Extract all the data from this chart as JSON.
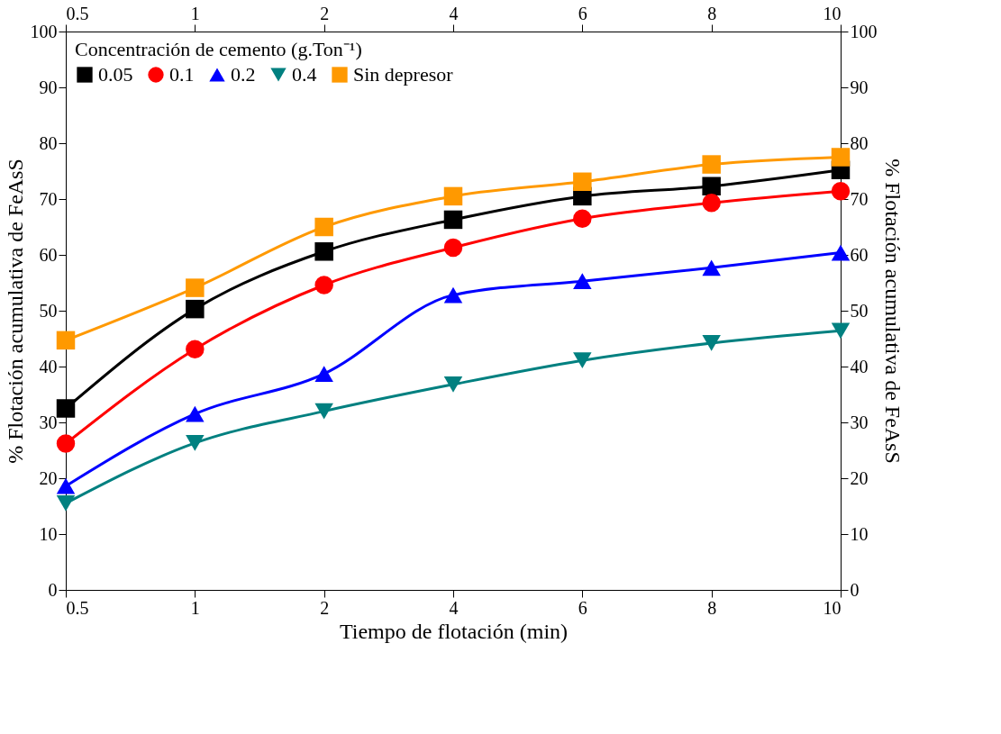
{
  "chart_data": {
    "type": "line",
    "xlabel": "Tiempo de flotación (min)",
    "ylabel": "% Flotación acumulativa de FeAsS",
    "y2label": "% Flotación acumulativa de FeAsS",
    "legend_title": "Concentración de cemento (g.Ton⁻¹)",
    "categories": [
      "0.5",
      "1",
      "2",
      "4",
      "6",
      "8",
      "10"
    ],
    "ylim": [
      0,
      100
    ],
    "yticks": [
      0,
      10,
      20,
      30,
      40,
      50,
      60,
      70,
      80,
      90,
      100
    ],
    "y2lim": [
      0,
      100
    ],
    "y2ticks": [
      0,
      10,
      20,
      30,
      40,
      50,
      60,
      70,
      80,
      90,
      100
    ],
    "grid": false,
    "legend": "top left",
    "line_style": "solid",
    "series": [
      {
        "name": "0.05",
        "color": "#000000",
        "marker": "square",
        "values": [
          32.5,
          50.3,
          60.6,
          66.3,
          70.5,
          72.3,
          75.2
        ]
      },
      {
        "name": "0.1",
        "color": "#ff0000",
        "marker": "circle",
        "values": [
          26.2,
          43.1,
          54.6,
          61.3,
          66.5,
          69.3,
          71.4
        ]
      },
      {
        "name": "0.2",
        "color": "#0000ff",
        "marker": "triangle",
        "values": [
          18.6,
          31.5,
          38.7,
          52.8,
          55.3,
          57.7,
          60.4
        ]
      },
      {
        "name": "0.4",
        "color": "#008080",
        "marker": "triangle-down",
        "values": [
          15.5,
          26.3,
          32.0,
          36.8,
          41.1,
          44.2,
          46.4
        ]
      },
      {
        "name": "Sin depresor",
        "color": "#ff9900",
        "marker": "square",
        "values": [
          44.7,
          54.1,
          65.0,
          70.5,
          73.1,
          76.2,
          77.5
        ]
      }
    ]
  }
}
